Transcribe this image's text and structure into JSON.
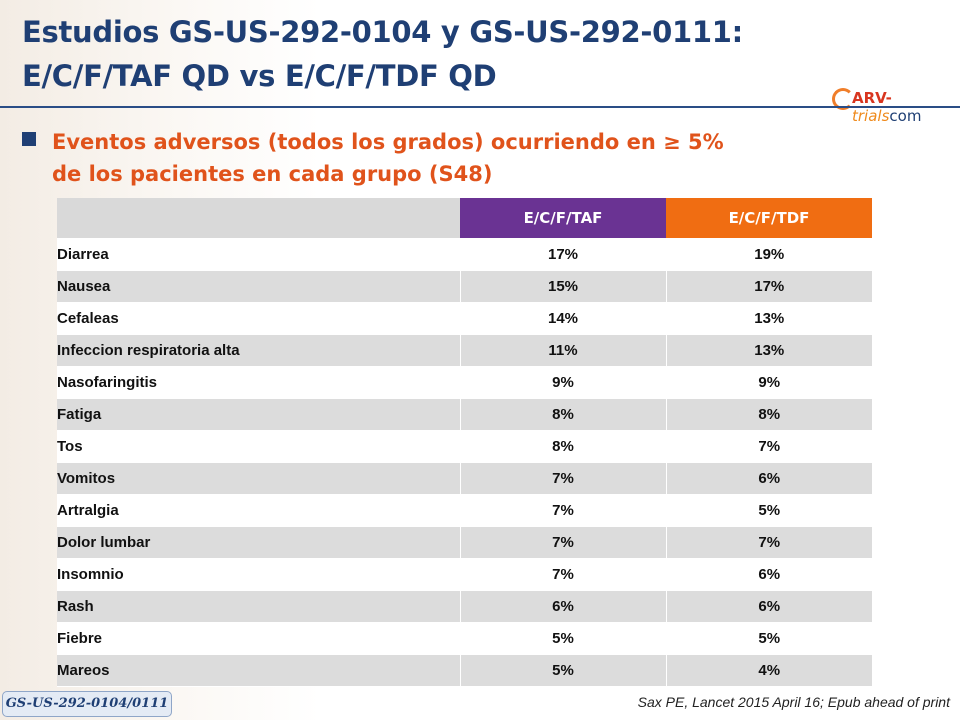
{
  "header": {
    "title_line1": "Estudios GS-US-292-0104 y GS-US-292-0111:",
    "title_line2": "E/C/F/TAF QD vs E/C/F/TDF QD"
  },
  "logo": {
    "arv": "ARV-",
    "trials": "trials",
    "com": "com"
  },
  "subtitle": {
    "line1": "Eventos adversos (todos los  grados) ocurriendo en ≥ 5%",
    "line2": "de los pacientes en cada grupo (S48)"
  },
  "table": {
    "columns": [
      "",
      "E/C/F/TAF",
      "E/C/F/TDF"
    ],
    "column_colors": {
      "taf": "#6a3393",
      "tdf": "#f06d12"
    },
    "rows": [
      {
        "event": "Diarrea",
        "taf": "17%",
        "tdf": "19%"
      },
      {
        "event": "Nausea",
        "taf": "15%",
        "tdf": "17%"
      },
      {
        "event": "Cefaleas",
        "taf": "14%",
        "tdf": "13%"
      },
      {
        "event": "Infeccion respiratoria alta",
        "taf": "11%",
        "tdf": "13%"
      },
      {
        "event": "Nasofaringitis",
        "taf": "9%",
        "tdf": "9%"
      },
      {
        "event": "Fatiga",
        "taf": "8%",
        "tdf": "8%"
      },
      {
        "event": "Tos",
        "taf": "8%",
        "tdf": "7%"
      },
      {
        "event": "Vomitos",
        "taf": "7%",
        "tdf": "6%"
      },
      {
        "event": "Artralgia",
        "taf": "7%",
        "tdf": "5%"
      },
      {
        "event": "Dolor lumbar",
        "taf": "7%",
        "tdf": "7%"
      },
      {
        "event": "Insomnio",
        "taf": "7%",
        "tdf": "6%"
      },
      {
        "event": "Rash",
        "taf": "6%",
        "tdf": "6%"
      },
      {
        "event": "Fiebre",
        "taf": "5%",
        "tdf": "5%"
      },
      {
        "event": "Mareos",
        "taf": "5%",
        "tdf": "4%"
      }
    ]
  },
  "footer": {
    "study_tag": "GS-US-292-0104/0111",
    "reference": "Sax PE, Lancet 2015 April 16; Epub ahead of print"
  },
  "colors": {
    "title": "#1f3f74",
    "subtitle": "#e0531b"
  }
}
